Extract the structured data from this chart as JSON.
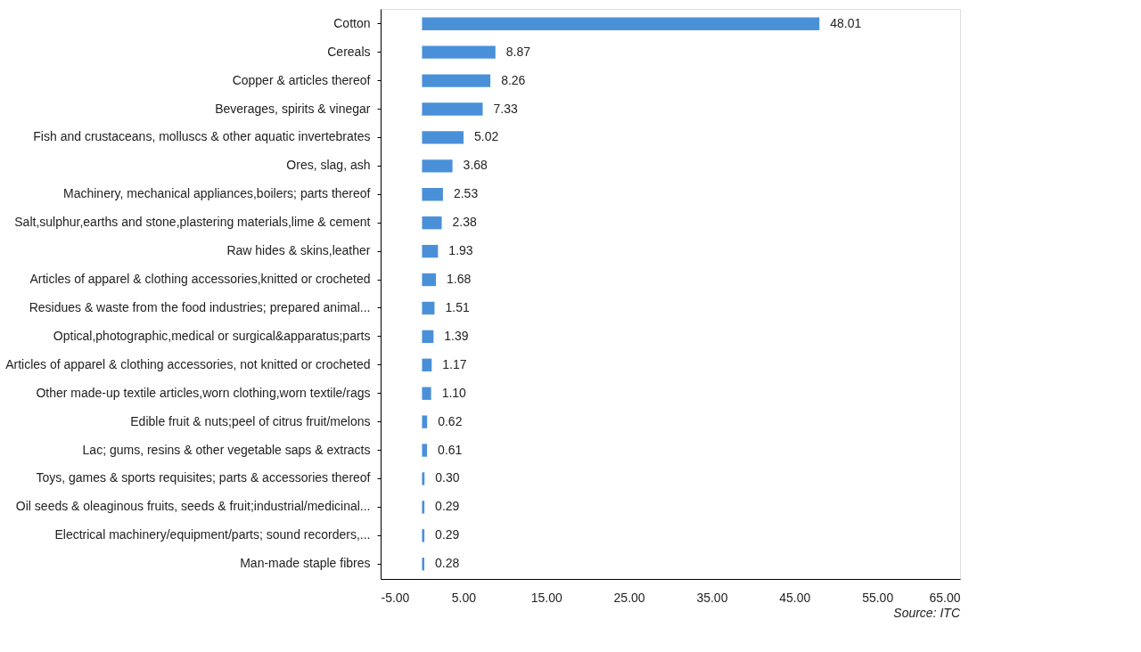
{
  "chart_data": {
    "type": "bar",
    "orientation": "horizontal",
    "categories": [
      "Cotton",
      "Cereals",
      "Copper & articles thereof",
      "Beverages, spirits & vinegar",
      "Fish and crustaceans, molluscs & other aquatic invertebrates",
      "Ores, slag, ash",
      "Machinery, mechanical appliances,boilers; parts thereof",
      "Salt,sulphur,earths and stone,plastering materials,lime & cement",
      "Raw hides & skins,leather",
      "Articles of apparel & clothing accessories,knitted or crocheted",
      "Residues & waste from the food industries; prepared animal...",
      "Optical,photographic,medical or surgical&apparatus;parts",
      "Articles of apparel & clothing accessories, not knitted or crocheted",
      "Other made-up textile articles,worn clothing,worn textile/rags",
      "Edible fruit & nuts;peel of citrus fruit/melons",
      "Lac; gums, resins & other vegetable saps & extracts",
      "Toys, games & sports requisites; parts & accessories thereof",
      "Oil seeds & oleaginous fruits, seeds & fruit;industrial/medicinal...",
      "Electrical machinery/equipment/parts; sound recorders,...",
      "Man-made staple fibres"
    ],
    "values": [
      48.01,
      8.87,
      8.26,
      7.33,
      5.02,
      3.68,
      2.53,
      2.38,
      1.93,
      1.68,
      1.51,
      1.39,
      1.17,
      1.1,
      0.62,
      0.61,
      0.3,
      0.29,
      0.29,
      0.28
    ],
    "value_labels": [
      "48.01",
      "8.87",
      "8.26",
      "7.33",
      "5.02",
      "3.68",
      "2.53",
      "2.38",
      "1.93",
      "1.68",
      "1.51",
      "1.39",
      "1.17",
      "1.10",
      "0.62",
      "0.61",
      "0.30",
      "0.29",
      "0.29",
      "0.28"
    ],
    "color": "#4a90d9",
    "xlim": [
      -5,
      65
    ],
    "xticks": [
      {
        "value": -5,
        "label": "-5.00"
      },
      {
        "value": 5,
        "label": "5.00"
      },
      {
        "value": 15,
        "label": "15.00"
      },
      {
        "value": 25,
        "label": "25.00"
      },
      {
        "value": 35,
        "label": "35.00"
      },
      {
        "value": 45,
        "label": "45.00"
      },
      {
        "value": 55,
        "label": "55.00"
      },
      {
        "value": 65,
        "label": "65.00"
      }
    ],
    "grid": false,
    "annotations": [
      "Source: ITC"
    ]
  }
}
